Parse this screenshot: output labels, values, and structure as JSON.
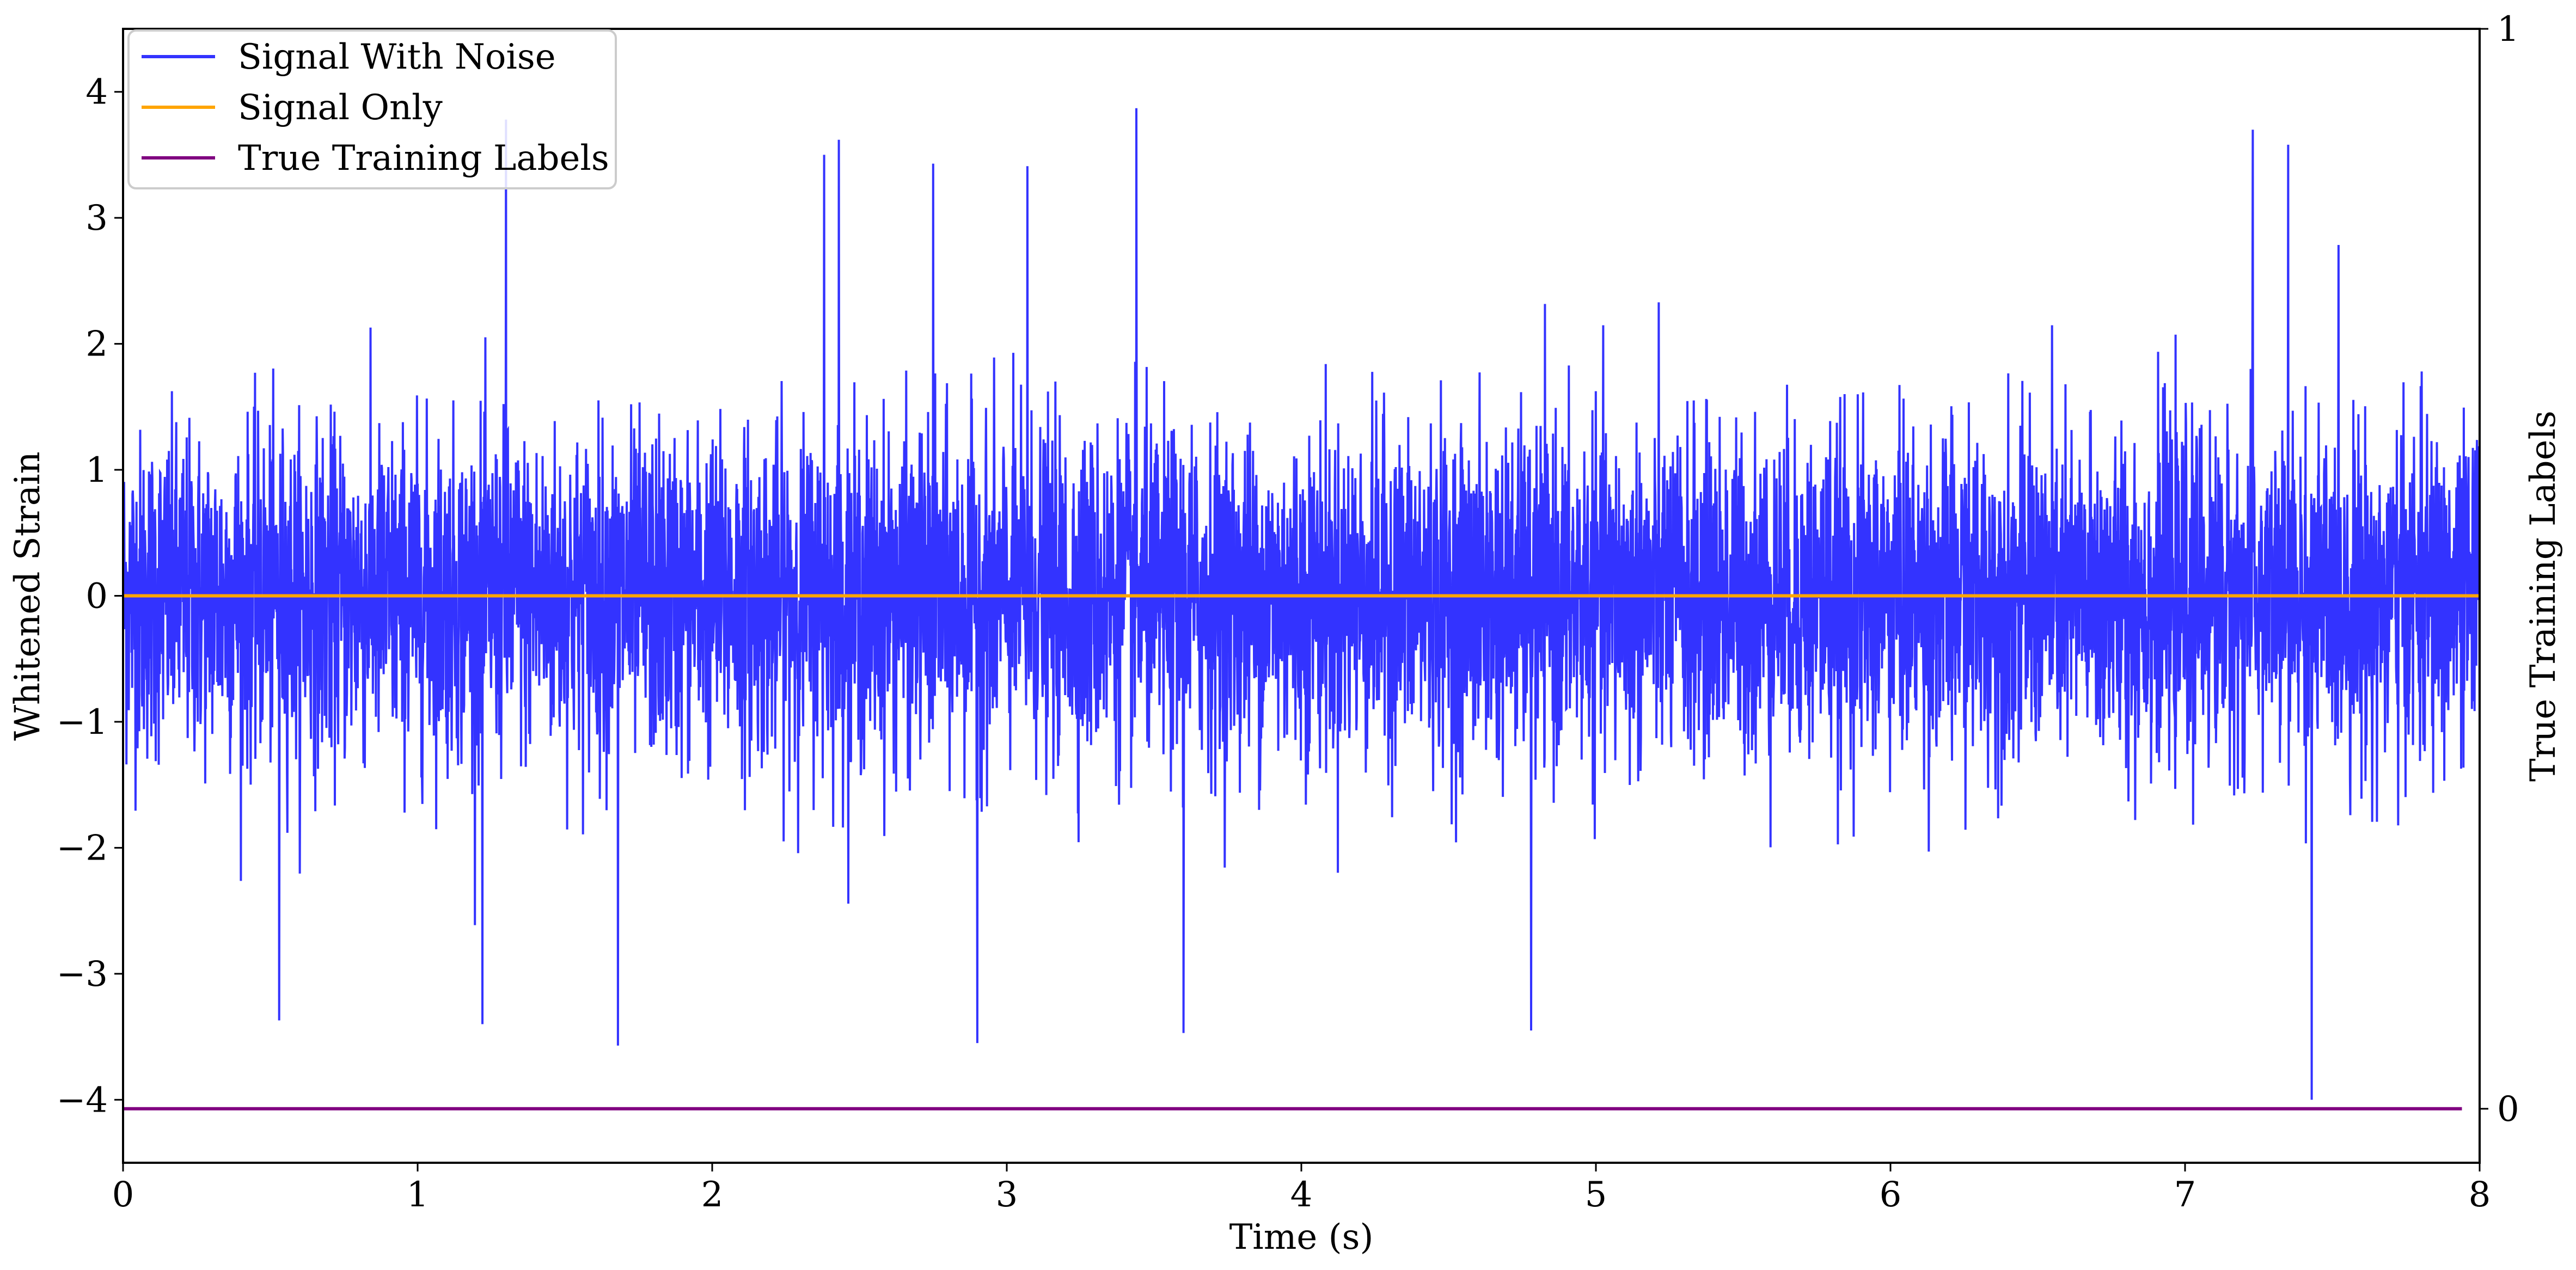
{
  "chart_data": {
    "type": "line",
    "title": "",
    "xlabel": "Time (s)",
    "ylabel": "Whitened Strain",
    "y2label": "True Training Labels",
    "xlim": [
      0,
      8
    ],
    "ylim": [
      -4.5,
      4.5
    ],
    "y2lim": [
      -0.05,
      1.0
    ],
    "x_ticks": [
      0,
      1,
      2,
      3,
      4,
      5,
      6,
      7,
      8
    ],
    "x_tick_labels": [
      "0",
      "1",
      "2",
      "3",
      "4",
      "5",
      "6",
      "7",
      "8"
    ],
    "y_ticks": [
      -4,
      -3,
      -2,
      -1,
      0,
      1,
      2,
      3,
      4
    ],
    "y_tick_labels": [
      "−4",
      "−3",
      "−2",
      "−1",
      "0",
      "1",
      "2",
      "3",
      "4"
    ],
    "y2_ticks": [
      0,
      1
    ],
    "y2_tick_labels": [
      "0",
      "1"
    ],
    "grid": false,
    "legend_position": "upper-left",
    "series": [
      {
        "name": "Signal With Noise",
        "color": "#3333ff",
        "axis": "left",
        "description_stats": {
          "mean": 0.0,
          "std": 0.65,
          "peak_max": 3.87,
          "peak_min": -3.57
        },
        "peaks": [
          {
            "x": 1.3,
            "y": 3.78
          },
          {
            "x": 3.44,
            "y": 3.87
          },
          {
            "x": 7.23,
            "y": 3.7
          },
          {
            "x": 2.43,
            "y": 3.62
          },
          {
            "x": 2.38,
            "y": 3.5
          },
          {
            "x": 2.75,
            "y": 3.43
          },
          {
            "x": 3.07,
            "y": 3.41
          },
          {
            "x": 7.35,
            "y": 3.58
          },
          {
            "x": 1.68,
            "y": -3.57
          },
          {
            "x": 2.9,
            "y": -3.55
          },
          {
            "x": 1.22,
            "y": -3.4
          },
          {
            "x": 0.53,
            "y": -3.37
          },
          {
            "x": 3.6,
            "y": -3.47
          },
          {
            "x": 4.78,
            "y": -3.45
          },
          {
            "x": 7.43,
            "y": 0.12
          }
        ]
      },
      {
        "name": "Signal Only",
        "color": "#ffa500",
        "axis": "left",
        "x": [
          0,
          8
        ],
        "y": [
          0,
          0
        ]
      },
      {
        "name": "True Training Labels",
        "color": "#800080",
        "axis": "right",
        "x": [
          0,
          7.43,
          7.45,
          7.94
        ],
        "y": [
          0,
          0,
          0,
          0
        ]
      }
    ]
  }
}
